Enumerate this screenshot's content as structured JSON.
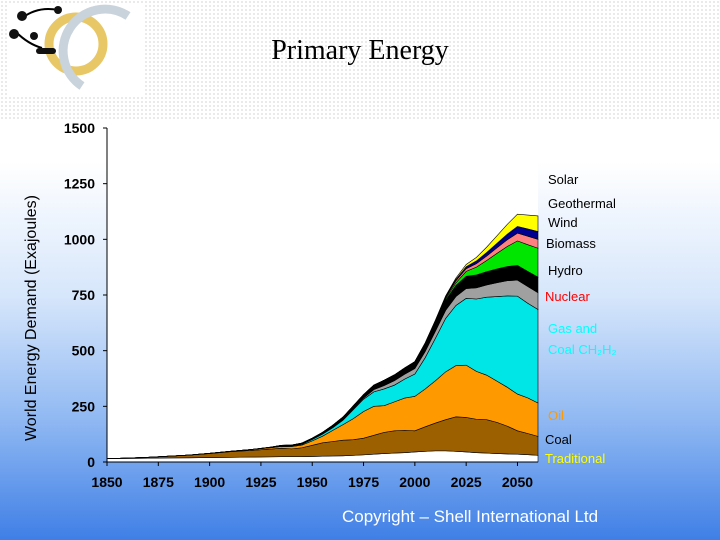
{
  "title": "Primary Energy",
  "copyright": "Copyright – Shell International Ltd",
  "logo_icon": "shell-scenario-logo-icon",
  "chart_data": {
    "type": "area",
    "stacked": true,
    "title": "Primary Energy",
    "ylabel": "World Energy Demand (Exajoules)",
    "xlabel": "",
    "xlim": [
      1850,
      2060
    ],
    "ylim": [
      0,
      1500
    ],
    "x_ticks": [
      1850,
      1875,
      1900,
      1925,
      1950,
      1975,
      2000,
      2025,
      2050
    ],
    "y_ticks": [
      0,
      250,
      500,
      750,
      1000,
      1250,
      1500
    ],
    "grid": false,
    "legend": "right",
    "x": [
      1850,
      1860,
      1870,
      1880,
      1890,
      1900,
      1910,
      1920,
      1930,
      1935,
      1940,
      1945,
      1950,
      1955,
      1960,
      1965,
      1970,
      1975,
      1980,
      1985,
      1990,
      1995,
      2000,
      2005,
      2010,
      2015,
      2020,
      2025,
      2030,
      2035,
      2040,
      2045,
      2050,
      2055,
      2060
    ],
    "series": [
      {
        "name": "Traditional",
        "color": "#ffffff",
        "values": [
          15,
          16,
          17,
          18,
          19,
          20,
          21,
          22,
          23,
          24,
          24,
          24,
          25,
          26,
          27,
          28,
          30,
          32,
          35,
          38,
          40,
          42,
          45,
          48,
          50,
          50,
          48,
          45,
          42,
          40,
          38,
          36,
          35,
          33,
          30
        ]
      },
      {
        "name": "Coal",
        "color": "#9c6000",
        "values": [
          0,
          2,
          4,
          8,
          12,
          18,
          25,
          30,
          35,
          38,
          35,
          40,
          50,
          60,
          65,
          70,
          70,
          75,
          85,
          95,
          100,
          100,
          95,
          110,
          125,
          140,
          155,
          155,
          150,
          150,
          140,
          125,
          105,
          95,
          85
        ]
      },
      {
        "name": "Oil",
        "color": "#ff9900",
        "values": [
          0,
          0,
          0,
          0,
          0,
          1,
          2,
          4,
          6,
          8,
          10,
          12,
          20,
          30,
          50,
          70,
          95,
          120,
          130,
          120,
          130,
          145,
          155,
          170,
          190,
          215,
          230,
          235,
          215,
          200,
          185,
          175,
          165,
          160,
          150
        ]
      },
      {
        "name": "Gas and Coal CH₂H₂",
        "color": "#00e6e6",
        "values": [
          0,
          0,
          0,
          0,
          0,
          0,
          0,
          0,
          1,
          2,
          3,
          4,
          6,
          9,
          12,
          20,
          40,
          55,
          65,
          75,
          75,
          85,
          100,
          140,
          190,
          240,
          270,
          300,
          325,
          350,
          380,
          410,
          440,
          425,
          420
        ]
      },
      {
        "name": "Nuclear",
        "color": "#a0a0a0",
        "values": [
          0,
          0,
          0,
          0,
          0,
          0,
          0,
          0,
          0,
          0,
          0,
          0,
          0,
          0,
          1,
          2,
          3,
          5,
          10,
          15,
          20,
          22,
          25,
          28,
          32,
          36,
          40,
          44,
          50,
          55,
          62,
          68,
          72,
          75,
          75
        ]
      },
      {
        "name": "Hydro",
        "color": "#000000",
        "values": [
          0,
          0,
          0,
          0,
          0,
          0,
          0,
          0,
          2,
          3,
          4,
          5,
          6,
          8,
          10,
          12,
          14,
          16,
          20,
          24,
          26,
          28,
          30,
          35,
          40,
          45,
          50,
          55,
          58,
          60,
          62,
          64,
          66,
          68,
          70
        ]
      },
      {
        "name": "Biomass",
        "color": "#00e600",
        "values": [
          0,
          0,
          0,
          0,
          0,
          0,
          0,
          0,
          0,
          0,
          0,
          0,
          0,
          0,
          0,
          0,
          0,
          0,
          0,
          0,
          0,
          0,
          0,
          0,
          2,
          6,
          12,
          22,
          35,
          50,
          70,
          90,
          110,
          120,
          130
        ]
      },
      {
        "name": "Wind",
        "color": "#ff8080",
        "values": [
          0,
          0,
          0,
          0,
          0,
          0,
          0,
          0,
          0,
          0,
          0,
          0,
          0,
          0,
          0,
          0,
          0,
          0,
          0,
          0,
          0,
          0,
          1,
          2,
          4,
          6,
          9,
          12,
          16,
          20,
          25,
          30,
          35,
          38,
          40
        ]
      },
      {
        "name": "Geothermal",
        "color": "#000090",
        "values": [
          0,
          0,
          0,
          0,
          0,
          0,
          0,
          0,
          0,
          0,
          0,
          0,
          0,
          0,
          0,
          0,
          0,
          0,
          0,
          0,
          0,
          0,
          0,
          1,
          2,
          4,
          6,
          9,
          12,
          16,
          20,
          25,
          30,
          33,
          35
        ]
      },
      {
        "name": "Solar",
        "color": "#ffff00",
        "values": [
          0,
          0,
          0,
          0,
          0,
          0,
          0,
          0,
          0,
          0,
          0,
          0,
          0,
          0,
          0,
          0,
          0,
          0,
          0,
          0,
          0,
          0,
          0,
          1,
          2,
          4,
          6,
          10,
          16,
          24,
          34,
          44,
          55,
          62,
          70
        ]
      }
    ]
  },
  "legend": [
    {
      "key": "solar",
      "label": "Solar",
      "color": "#000000"
    },
    {
      "key": "geothermal",
      "label": "Geothermal",
      "color": "#000000"
    },
    {
      "key": "wind",
      "label": "Wind",
      "color": "#000000"
    },
    {
      "key": "biomass",
      "label": "Biomass",
      "color": "#000000"
    },
    {
      "key": "hydro",
      "label": "Hydro",
      "color": "#000000"
    },
    {
      "key": "nuclear",
      "label": "Nuclear",
      "color": "#ff0000"
    },
    {
      "key": "gas",
      "label": "Gas and",
      "color": "#00ffff"
    },
    {
      "key": "coal-ch",
      "label": "Coal CH₂H₂",
      "color": "#00ffff"
    },
    {
      "key": "oil",
      "label": "Oil",
      "color": "#ff9900"
    },
    {
      "key": "coal",
      "label": "Coal",
      "color": "#000000"
    },
    {
      "key": "traditional",
      "label": "Traditional",
      "color": "#ffff00"
    }
  ]
}
